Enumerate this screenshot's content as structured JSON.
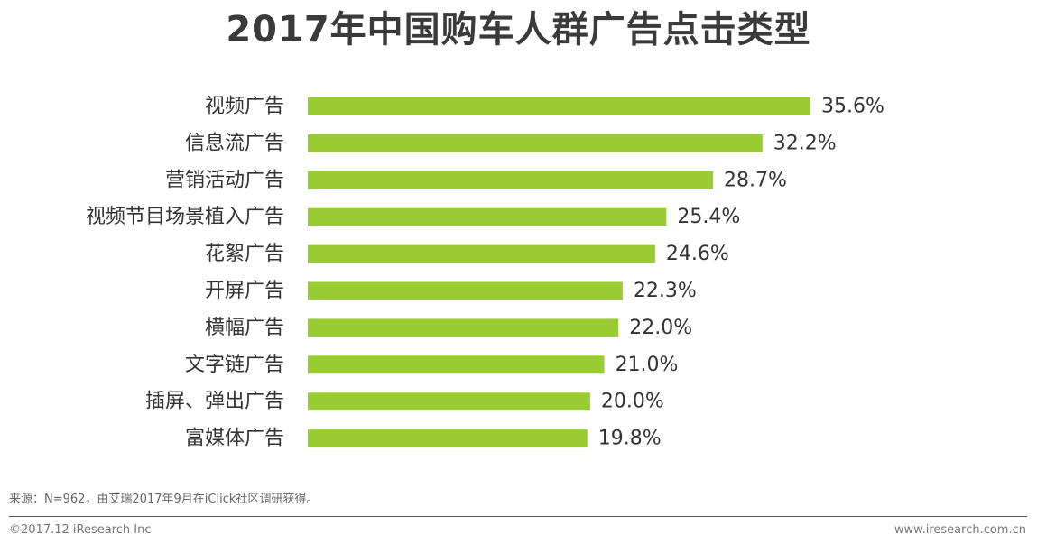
{
  "chart_data": {
    "type": "bar",
    "orientation": "horizontal",
    "title": "2017年中国购车人群广告点击类型",
    "categories": [
      "视频广告",
      "信息流广告",
      "营销活动广告",
      "视频节目场景植入广告",
      "花絮广告",
      "开屏广告",
      "横幅广告",
      "文字链广告",
      "插屏、弹出广告",
      "富媒体广告"
    ],
    "values": [
      35.6,
      32.2,
      28.7,
      25.4,
      24.6,
      22.3,
      22.0,
      21.0,
      20.0,
      19.8
    ],
    "value_labels": [
      "35.6%",
      "32.2%",
      "28.7%",
      "25.4%",
      "24.6%",
      "22.3%",
      "22.0%",
      "21.0%",
      "20.0%",
      "19.8%"
    ],
    "unit": "%",
    "xlim": [
      0,
      35.6
    ],
    "bar_color": "#99cc33",
    "xlabel": "",
    "ylabel": ""
  },
  "source_note": "来源：N=962，由艾瑞2017年9月在iClick社区调研获得。",
  "footer": {
    "copyright": "©2017.12 iResearch Inc",
    "website": "www.iresearch.com.cn"
  }
}
